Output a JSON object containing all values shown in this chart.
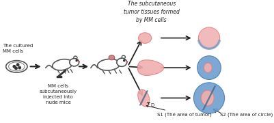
{
  "bg_color": "#f5f0eb",
  "title": "",
  "text_color": "#1a1a1a",
  "labels": {
    "cultured_mm": "The cultured\nMM cells",
    "injection": "MM cells\nsubcutaneously\ninjected into\nnude mice",
    "subcutaneous": "The subcutaneous\ntumor tissues formed\nby MM cells",
    "s1_label": "S1 (The area of tumor)",
    "s2_label": "S2 (The area of circle)",
    "d_label": "D"
  },
  "pink_color": "#e88080",
  "pink_light": "#f0b0b0",
  "blue_color": "#6699cc",
  "blue_light": "#88aadd",
  "dark_line": "#446688"
}
